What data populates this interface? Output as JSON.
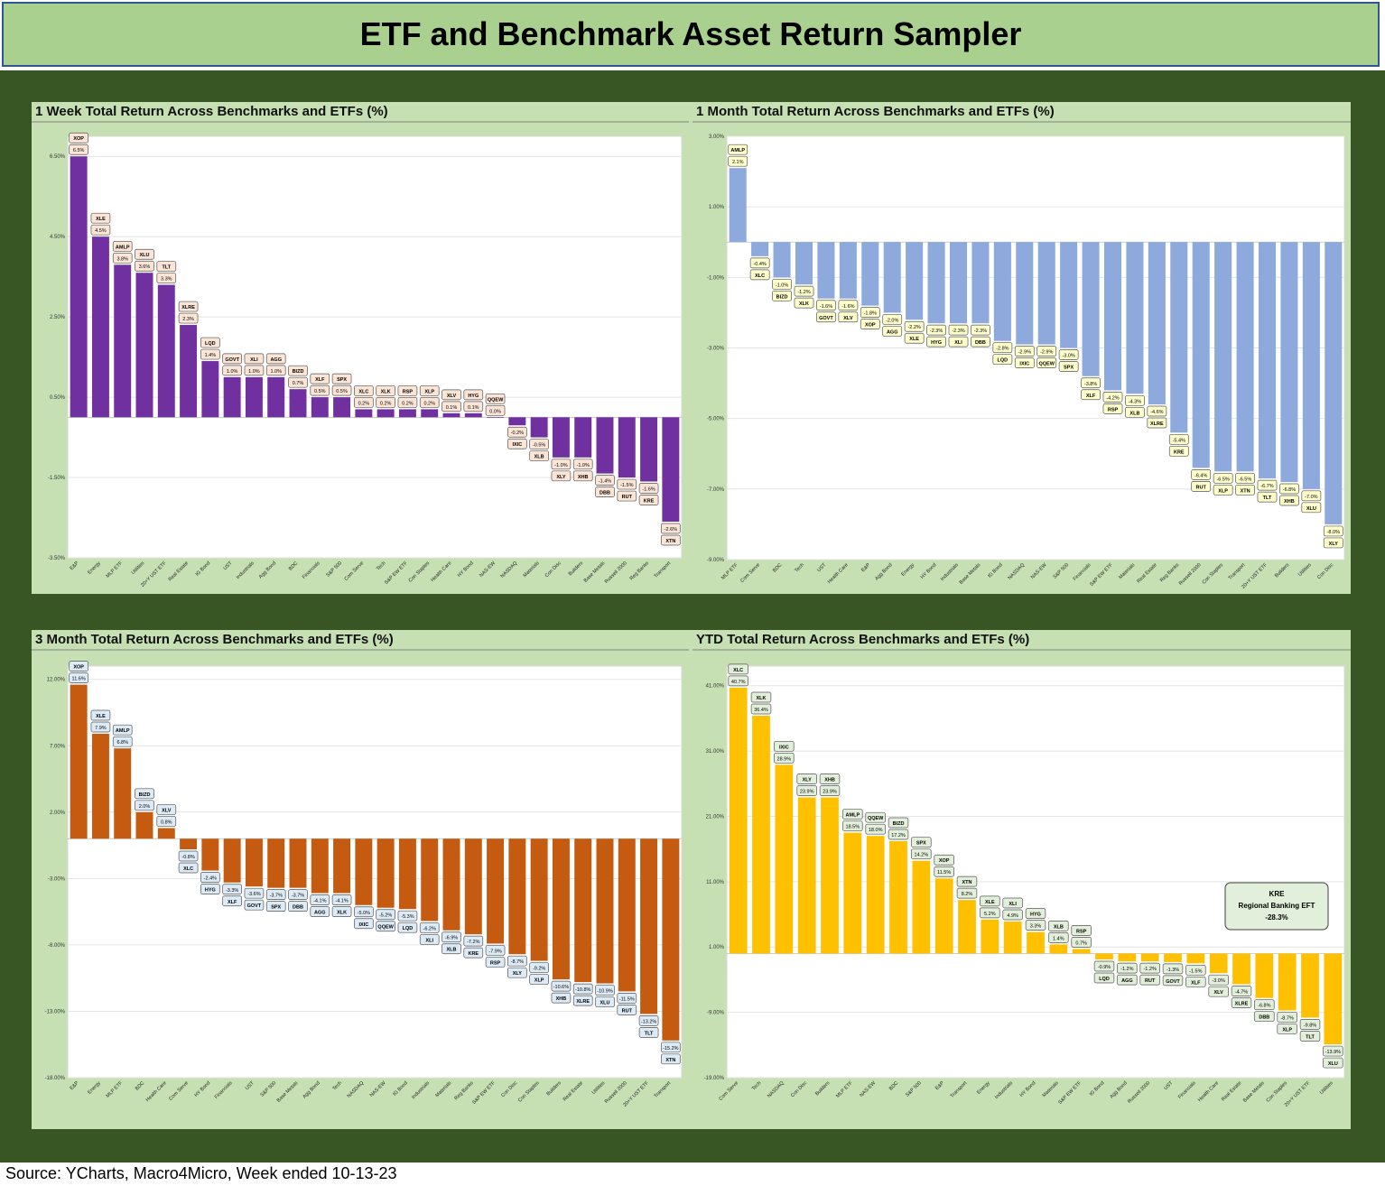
{
  "page_title": "ETF and Benchmark Asset Return Sampler",
  "source_note": "Source: YCharts, Macro4Micro, Week ended 10-13-23",
  "colors": {
    "banner_bg": "#a9d08e",
    "board_bg": "#375623",
    "panel_bg": "#c6e0b4",
    "week_bar": "#7030a0",
    "month_bar": "#8ea9db",
    "three_month_bar": "#c55a11",
    "ytd_bar": "#ffc000"
  },
  "chart_data": [
    {
      "type": "bar",
      "title": "1 Week Total Return Across Benchmarks and ETFs (%)",
      "yticks": [
        "6.50%",
        "4.50%",
        "2.50%",
        "0.50%",
        "-1.50%",
        "-3.50%"
      ],
      "ylim": [
        -3.5,
        7.0
      ],
      "bar_color": "#7030a0",
      "label_fill": "#fbe5d6",
      "categories": [
        "E&P",
        "Energy",
        "MLP ETF",
        "Utilities",
        "20+Y UST ETF",
        "Real Estate",
        "IG Bond",
        "UST",
        "Industrials",
        "Agg Bond",
        "BDC",
        "Financials",
        "S&P 500",
        "Com Serve",
        "Tech",
        "S&P EW ETF",
        "Con Staples",
        "Health Care",
        "HY Bond",
        "NAS-EW",
        "NASDAQ",
        "Materials",
        "Con Disc",
        "Builders",
        "Base Metals",
        "Russell 2000",
        "Reg Banks",
        "Transport"
      ],
      "tickers": [
        "XOP",
        "XLE",
        "AMLP",
        "XLU",
        "TLT",
        "XLRE",
        "LQD",
        "GOVT",
        "XLI",
        "AGG",
        "BIZD",
        "XLF",
        "SPX",
        "XLC",
        "XLK",
        "RSP",
        "XLP",
        "XLV",
        "HYG",
        "QQEW",
        "IXIC",
        "XLB",
        "XLY",
        "XHB",
        "DBB",
        "RUT",
        "KRE",
        "XTN"
      ],
      "value_labels": [
        "6.5%",
        "4.5%",
        "3.8%",
        "3.6%",
        "3.3%",
        "2.3%",
        "1.4%",
        "1.0%",
        "1.0%",
        "1.0%",
        "0.7%",
        "0.5%",
        "0.5%",
        "0.2%",
        "0.2%",
        "0.2%",
        "0.2%",
        "0.1%",
        "0.1%",
        "0.0%",
        "-0.2%",
        "-0.5%",
        "-1.0%",
        "-1.0%",
        "-1.4%",
        "-1.5%",
        "-1.6%",
        "-2.6%"
      ],
      "values": [
        6.5,
        4.5,
        3.8,
        3.6,
        3.3,
        2.3,
        1.4,
        1.0,
        1.0,
        1.0,
        0.7,
        0.5,
        0.5,
        0.2,
        0.2,
        0.2,
        0.2,
        0.1,
        0.1,
        0.0,
        -0.2,
        -0.5,
        -1.0,
        -1.0,
        -1.4,
        -1.5,
        -1.6,
        -2.6
      ]
    },
    {
      "type": "bar",
      "title": "1 Month Total Return Across Benchmarks and ETFs (%)",
      "yticks": [
        "3.00%",
        "1.00%",
        "-1.00%",
        "-3.00%",
        "-5.00%",
        "-7.00%",
        "-9.00%"
      ],
      "ylim": [
        -9.0,
        3.0
      ],
      "bar_color": "#8ea9db",
      "label_fill": "#ffffcc",
      "categories": [
        "MLP ETF",
        "Com Serve",
        "BDC",
        "Tech",
        "UST",
        "Health Care",
        "E&P",
        "Agg Bond",
        "Energy",
        "HY Bond",
        "Industrials",
        "Base Metals",
        "IG Bond",
        "NASDAQ",
        "NAS-EW",
        "S&P 500",
        "Financials",
        "S&P EW ETF",
        "Materials",
        "Real Estate",
        "Reg Banks",
        "Russell 2000",
        "Con Staples",
        "Transport",
        "20+Y UST ETF",
        "Builders",
        "Utilities",
        "Con Disc"
      ],
      "tickers": [
        "AMLP",
        "XLC",
        "BIZD",
        "XLK",
        "GOVT",
        "XLV",
        "XOP",
        "AGG",
        "XLE",
        "HYG",
        "XLI",
        "DBB",
        "LQD",
        "IXIC",
        "QQEW",
        "SPX",
        "XLF",
        "RSP",
        "XLB",
        "XLRE",
        "KRE",
        "RUT",
        "XLP",
        "XTN",
        "TLT",
        "XHB",
        "XLU",
        "XLY"
      ],
      "value_labels": [
        "2.1%",
        "-0.4%",
        "-1.0%",
        "-1.2%",
        "-1.6%",
        "-1.6%",
        "-1.8%",
        "-2.0%",
        "-2.2%",
        "-2.3%",
        "-2.3%",
        "-2.3%",
        "-2.8%",
        "-2.9%",
        "-2.9%",
        "-3.0%",
        "-3.8%",
        "-4.2%",
        "-4.3%",
        "-4.6%",
        "-5.4%",
        "-6.4%",
        "-6.5%",
        "-6.5%",
        "-6.7%",
        "-6.8%",
        "-7.0%",
        "-8.0%"
      ],
      "values": [
        2.1,
        -0.4,
        -1.0,
        -1.2,
        -1.6,
        -1.6,
        -1.8,
        -2.0,
        -2.2,
        -2.3,
        -2.3,
        -2.3,
        -2.8,
        -2.9,
        -2.9,
        -3.0,
        -3.8,
        -4.2,
        -4.3,
        -4.6,
        -5.4,
        -6.4,
        -6.5,
        -6.5,
        -6.7,
        -6.8,
        -7.0,
        -8.0
      ]
    },
    {
      "type": "bar",
      "title": "3 Month Total Return Across Benchmarks and ETFs (%)",
      "yticks": [
        "12.00%",
        "7.00%",
        "2.00%",
        "-3.00%",
        "-8.00%",
        "-13.00%",
        "-18.00%"
      ],
      "ylim": [
        -18.0,
        13.0
      ],
      "bar_color": "#c55a11",
      "label_fill": "#ddebf7",
      "categories": [
        "E&P",
        "Energy",
        "MLP ETF",
        "BDC",
        "Health Care",
        "Com Serve",
        "HY Bond",
        "Financials",
        "UST",
        "S&P 500",
        "Base Metals",
        "Agg Bond",
        "Tech",
        "NASDAQ",
        "NAS-EW",
        "IG Bond",
        "Industrials",
        "Materials",
        "Reg Banks",
        "S&P EW ETF",
        "Con Disc",
        "Con Staples",
        "Builders",
        "Real Estate",
        "Utilities",
        "Russell 2000",
        "20+Y UST ETF",
        "Transport"
      ],
      "tickers": [
        "XOP",
        "XLE",
        "AMLP",
        "BIZD",
        "XLV",
        "XLC",
        "HYG",
        "XLF",
        "GOVT",
        "SPX",
        "DBB",
        "AGG",
        "XLK",
        "IXIC",
        "QQEW",
        "LQD",
        "XLI",
        "XLB",
        "KRE",
        "RSP",
        "XLY",
        "XLP",
        "XHB",
        "XLRE",
        "XLU",
        "RUT",
        "TLT",
        "XTN"
      ],
      "value_labels": [
        "11.6%",
        "7.9%",
        "6.8%",
        "2.0%",
        "0.8%",
        "-0.8%",
        "-2.4%",
        "-3.3%",
        "-3.6%",
        "-3.7%",
        "-3.7%",
        "-4.1%",
        "-4.1%",
        "-5.0%",
        "-5.2%",
        "-5.3%",
        "-6.2%",
        "-6.9%",
        "-7.2%",
        "-7.9%",
        "-8.7%",
        "-9.2%",
        "-10.6%",
        "-10.8%",
        "-10.9%",
        "-11.5%",
        "-13.2%",
        "-15.2%"
      ],
      "values": [
        11.6,
        7.9,
        6.8,
        2.0,
        0.8,
        -0.8,
        -2.4,
        -3.3,
        -3.6,
        -3.7,
        -3.7,
        -4.1,
        -4.1,
        -5.0,
        -5.2,
        -5.3,
        -6.2,
        -6.9,
        -7.2,
        -7.9,
        -8.7,
        -9.2,
        -10.6,
        -10.8,
        -10.9,
        -11.5,
        -13.2,
        -15.2
      ]
    },
    {
      "type": "bar",
      "title": "YTD Total Return Across Benchmarks and ETFs (%)",
      "yticks": [
        "41.00%",
        "31.00%",
        "21.00%",
        "11.00%",
        "1.00%",
        "-9.00%",
        "-19.00%"
      ],
      "ylim": [
        -19.0,
        44.0
      ],
      "bar_color": "#ffc000",
      "label_fill": "#e2efda",
      "callout": {
        "ticker": "KRE",
        "name": "Regional Banking EFT",
        "value": "-28.3%"
      },
      "categories": [
        "Com Serve",
        "Tech",
        "NASDAQ",
        "Con Disc",
        "Builders",
        "MLP ETF",
        "NAS-EW",
        "BDC",
        "S&P 500",
        "E&P",
        "Transport",
        "Energy",
        "Industrials",
        "HY Bond",
        "Materials",
        "S&P EW ETF",
        "IG Bond",
        "Agg Bond",
        "Russell 2000",
        "UST",
        "Financials",
        "Health Care",
        "Real Estate",
        "Base Metals",
        "Con Staples",
        "20+Y UST ETF",
        "Utilities"
      ],
      "tickers": [
        "XLC",
        "XLK",
        "IXIC",
        "XLY",
        "XHB",
        "AMLP",
        "QQEW",
        "BIZD",
        "SPX",
        "XOP",
        "XTN",
        "XLE",
        "XLI",
        "HYG",
        "XLB",
        "RSP",
        "LQD",
        "AGG",
        "RUT",
        "GOVT",
        "XLF",
        "XLV",
        "XLRE",
        "DBB",
        "XLP",
        "TLT",
        "XLU"
      ],
      "value_labels": [
        "40.7%",
        "36.4%",
        "28.9%",
        "23.9%",
        "23.9%",
        "18.5%",
        "18.0%",
        "17.2%",
        "14.2%",
        "11.5%",
        "8.2%",
        "5.2%",
        "4.9%",
        "3.3%",
        "1.4%",
        "0.7%",
        "-0.9%",
        "-1.2%",
        "-1.2%",
        "-1.3%",
        "-1.5%",
        "-3.0%",
        "-4.7%",
        "-6.8%",
        "-8.7%",
        "-9.8%",
        "-13.9%"
      ],
      "values": [
        40.7,
        36.4,
        28.9,
        23.9,
        23.9,
        18.5,
        18.0,
        17.2,
        14.2,
        11.5,
        8.2,
        5.2,
        4.9,
        3.3,
        1.4,
        0.7,
        -0.9,
        -1.2,
        -1.2,
        -1.3,
        -1.5,
        -3.0,
        -4.7,
        -6.8,
        -8.7,
        -9.8,
        -13.9
      ]
    }
  ]
}
